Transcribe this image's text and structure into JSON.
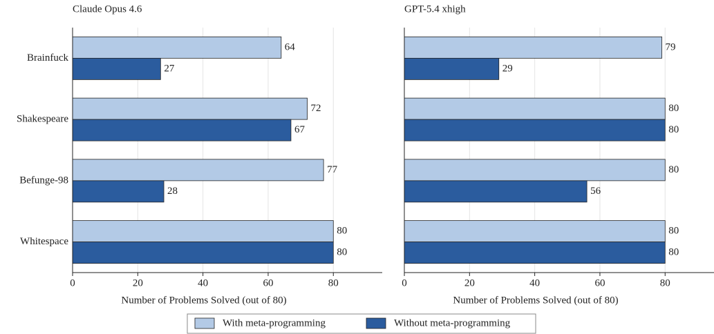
{
  "chart_data": [
    {
      "type": "barh",
      "title": "Claude Opus 4.6",
      "categories": [
        "Brainfuck",
        "Shakespeare",
        "Befunge-98",
        "Whitespace"
      ],
      "series": [
        {
          "values": [
            64,
            72,
            77,
            80
          ]
        },
        {
          "values": [
            27,
            67,
            28,
            80
          ]
        }
      ],
      "xlabel": "Number of Problems Solved (out of 80)",
      "xlim": [
        0,
        95
      ],
      "xticks": [
        0,
        20,
        40,
        60,
        80
      ],
      "grid": true
    },
    {
      "type": "barh",
      "title": "GPT-5.4 xhigh",
      "series": [
        {
          "values": [
            79,
            80,
            80,
            80
          ]
        },
        {
          "values": [
            29,
            80,
            56,
            80
          ]
        }
      ],
      "xlabel": "Number of Problems Solved (out of 80)",
      "xlim": [
        0,
        95
      ],
      "xticks": [
        0,
        20,
        40,
        60,
        80
      ],
      "grid": true
    }
  ],
  "legend": [
    {
      "name": "With meta-programming",
      "color": "#b3cae6"
    },
    {
      "name": "Without meta-programming",
      "color": "#2b5c9e"
    }
  ]
}
